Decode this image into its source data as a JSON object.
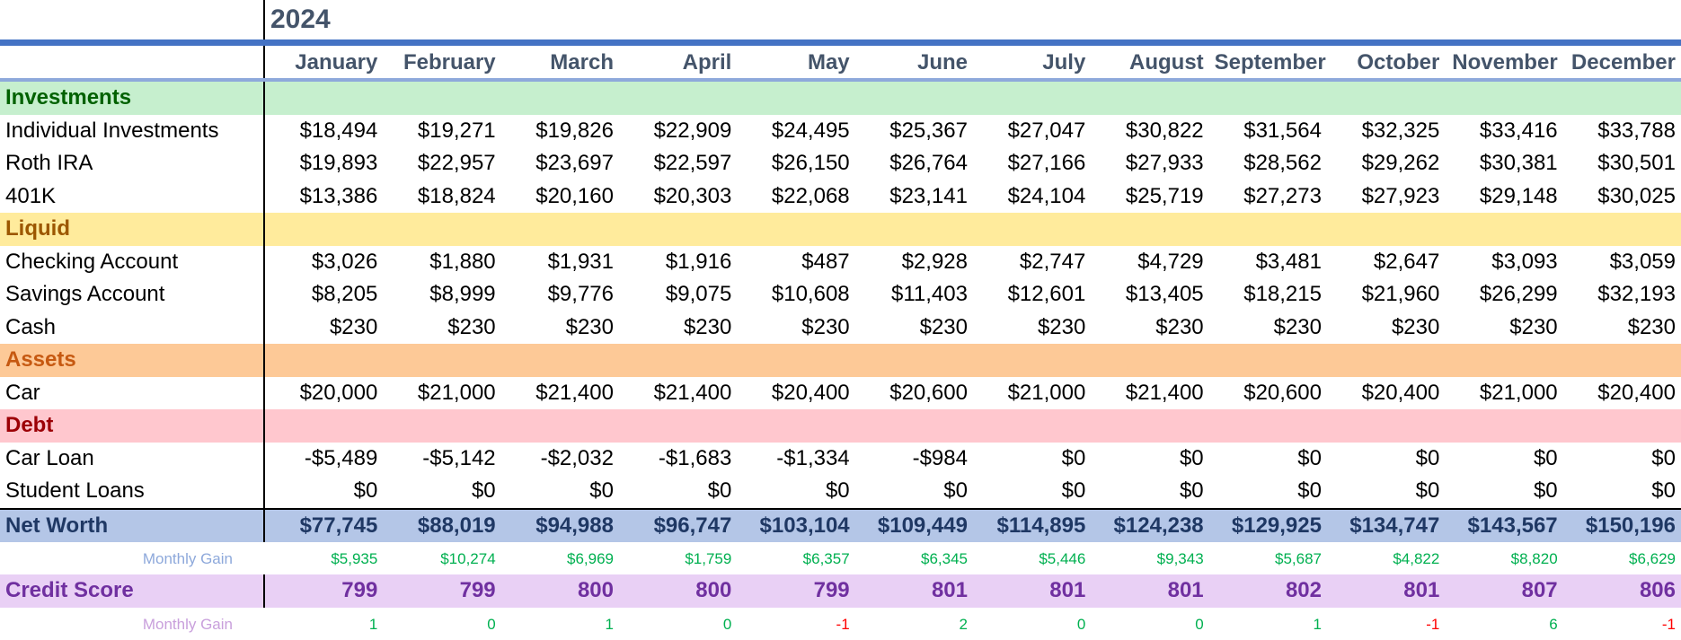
{
  "year": "2024",
  "months": [
    "January",
    "February",
    "March",
    "April",
    "May",
    "June",
    "July",
    "August",
    "September",
    "October",
    "November",
    "December"
  ],
  "sections": [
    {
      "id": "investments",
      "title": "Investments",
      "rows": [
        {
          "label": "Individual Investments",
          "values": [
            "$18,494",
            "$19,271",
            "$19,826",
            "$22,909",
            "$24,495",
            "$25,367",
            "$27,047",
            "$30,822",
            "$31,564",
            "$32,325",
            "$33,416",
            "$33,788"
          ]
        },
        {
          "label": "Roth IRA",
          "values": [
            "$19,893",
            "$22,957",
            "$23,697",
            "$22,597",
            "$26,150",
            "$26,764",
            "$27,166",
            "$27,933",
            "$28,562",
            "$29,262",
            "$30,381",
            "$30,501"
          ]
        },
        {
          "label": "401K",
          "values": [
            "$13,386",
            "$18,824",
            "$20,160",
            "$20,303",
            "$22,068",
            "$23,141",
            "$24,104",
            "$25,719",
            "$27,273",
            "$27,923",
            "$29,148",
            "$30,025"
          ]
        }
      ]
    },
    {
      "id": "liquid",
      "title": "Liquid",
      "rows": [
        {
          "label": "Checking Account",
          "values": [
            "$3,026",
            "$1,880",
            "$1,931",
            "$1,916",
            "$487",
            "$2,928",
            "$2,747",
            "$4,729",
            "$3,481",
            "$2,647",
            "$3,093",
            "$3,059"
          ]
        },
        {
          "label": "Savings Account",
          "values": [
            "$8,205",
            "$8,999",
            "$9,776",
            "$9,075",
            "$10,608",
            "$11,403",
            "$12,601",
            "$13,405",
            "$18,215",
            "$21,960",
            "$26,299",
            "$32,193"
          ]
        },
        {
          "label": "Cash",
          "values": [
            "$230",
            "$230",
            "$230",
            "$230",
            "$230",
            "$230",
            "$230",
            "$230",
            "$230",
            "$230",
            "$230",
            "$230"
          ]
        }
      ]
    },
    {
      "id": "assets",
      "title": "Assets",
      "rows": [
        {
          "label": "Car",
          "values": [
            "$20,000",
            "$21,000",
            "$21,400",
            "$21,400",
            "$20,400",
            "$20,600",
            "$21,000",
            "$21,400",
            "$20,600",
            "$20,400",
            "$21,000",
            "$20,400"
          ]
        }
      ]
    },
    {
      "id": "debt",
      "title": "Debt",
      "rows": [
        {
          "label": "Car Loan",
          "values": [
            "-$5,489",
            "-$5,142",
            "-$2,032",
            "-$1,683",
            "-$1,334",
            "-$984",
            "$0",
            "$0",
            "$0",
            "$0",
            "$0",
            "$0"
          ]
        },
        {
          "label": "Student Loans",
          "values": [
            "$0",
            "$0",
            "$0",
            "$0",
            "$0",
            "$0",
            "$0",
            "$0",
            "$0",
            "$0",
            "$0",
            "$0"
          ]
        }
      ]
    }
  ],
  "net_worth": {
    "label": "Net Worth",
    "values": [
      "$77,745",
      "$88,019",
      "$94,988",
      "$96,747",
      "$103,104",
      "$109,449",
      "$114,895",
      "$124,238",
      "$129,925",
      "$134,747",
      "$143,567",
      "$150,196"
    ]
  },
  "net_worth_gain": {
    "label": "Monthly Gain",
    "values": [
      "$5,935",
      "$10,274",
      "$6,969",
      "$1,759",
      "$6,357",
      "$6,345",
      "$5,446",
      "$9,343",
      "$5,687",
      "$4,822",
      "$8,820",
      "$6,629"
    ]
  },
  "credit_score": {
    "label": "Credit Score",
    "values": [
      "799",
      "799",
      "800",
      "800",
      "799",
      "801",
      "801",
      "801",
      "802",
      "801",
      "807",
      "806"
    ]
  },
  "credit_gain": {
    "label": "Monthly Gain",
    "values": [
      "1",
      "0",
      "1",
      "0",
      "-1",
      "2",
      "0",
      "0",
      "1",
      "-1",
      "6",
      "-1"
    ]
  },
  "colors": {
    "header_text": "#44546a",
    "header_rule": "#4472c4",
    "investments_fill": "#c6efce",
    "liquid_fill": "#ffeb9c",
    "assets_fill": "#fdc997",
    "debt_fill": "#ffc7ce",
    "net_worth_fill": "#b4c6e7",
    "credit_fill": "#e9d0f5",
    "positive": "#00b050",
    "negative": "#ff0000"
  }
}
